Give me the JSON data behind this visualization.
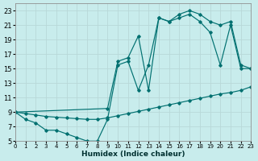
{
  "xlabel": "Humidex (Indice chaleur)",
  "bg_color": "#c8ecec",
  "grid_color": "#b8d8d8",
  "line_color": "#007070",
  "xlim": [
    0,
    23
  ],
  "ylim": [
    5,
    24
  ],
  "xticks": [
    0,
    1,
    2,
    3,
    4,
    5,
    6,
    7,
    8,
    9,
    10,
    11,
    12,
    13,
    14,
    15,
    16,
    17,
    18,
    19,
    20,
    21,
    22,
    23
  ],
  "yticks": [
    5,
    7,
    9,
    11,
    13,
    15,
    17,
    19,
    21,
    23
  ],
  "curve_v_x": [
    0,
    1,
    2,
    3,
    4,
    5,
    6,
    7,
    8,
    9,
    10,
    11,
    12,
    13,
    14,
    15,
    16,
    17,
    18,
    19,
    20,
    21,
    22,
    23
  ],
  "curve_v_y": [
    9,
    8,
    7.5,
    6.5,
    6.5,
    6,
    5.5,
    5,
    5,
    8,
    15.5,
    16,
    12,
    15.5,
    22,
    21.5,
    22,
    22.5,
    21.5,
    20,
    15.5,
    21,
    15,
    15
  ],
  "curve_mid_x": [
    0,
    9,
    10,
    11,
    12,
    13,
    14,
    15,
    16,
    17,
    18,
    19,
    20,
    21,
    22,
    23
  ],
  "curve_mid_y": [
    9,
    9.5,
    16,
    16.5,
    19.5,
    12,
    22,
    21.5,
    22.5,
    23,
    22.5,
    21.5,
    21,
    21.5,
    15.5,
    15
  ],
  "line_diag_x": [
    0,
    1,
    2,
    3,
    4,
    5,
    6,
    7,
    8,
    9,
    10,
    11,
    12,
    13,
    14,
    15,
    16,
    17,
    18,
    19,
    20,
    21,
    22,
    23
  ],
  "line_diag_y": [
    9.0,
    8.8,
    8.6,
    8.4,
    8.3,
    8.2,
    8.1,
    8.0,
    8.0,
    8.2,
    8.5,
    8.8,
    9.1,
    9.4,
    9.7,
    10.0,
    10.3,
    10.6,
    10.9,
    11.2,
    11.5,
    11.7,
    12.0,
    12.5
  ]
}
